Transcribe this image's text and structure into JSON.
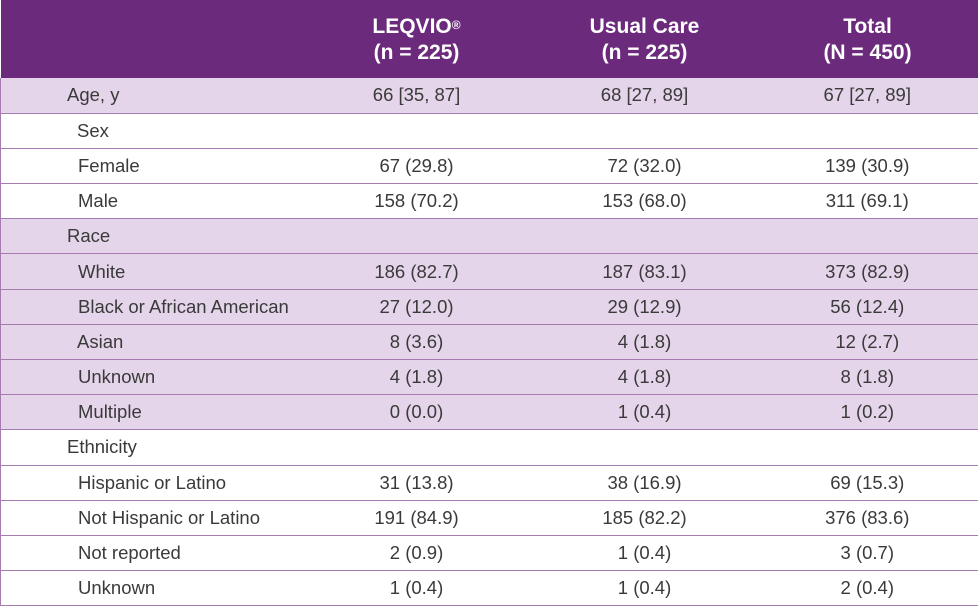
{
  "header": {
    "col1_title": "LEQVIO",
    "col1_mark": "®",
    "col1_n": "(n = 225)",
    "col2_title": "Usual Care",
    "col2_n": "(n = 225)",
    "col3_title": "Total",
    "col3_n": "(N = 450)"
  },
  "rows": [
    {
      "label": "Age, y",
      "v1": "66 [35, 87]",
      "v2": "68 [27, 89]",
      "v3": "67 [27, 89]"
    },
    {
      "label": "Sex",
      "v1": "",
      "v2": "",
      "v3": ""
    },
    {
      "label": "Female",
      "v1": "67 (29.8)",
      "v2": "72 (32.0)",
      "v3": "139 (30.9)"
    },
    {
      "label": "Male",
      "v1": "158 (70.2)",
      "v2": "153 (68.0)",
      "v3": "311 (69.1)"
    },
    {
      "label": "Race",
      "v1": "",
      "v2": "",
      "v3": ""
    },
    {
      "label": "White",
      "v1": "186 (82.7)",
      "v2": "187 (83.1)",
      "v3": "373 (82.9)"
    },
    {
      "label": "Black or African American",
      "v1": "27 (12.0)",
      "v2": "29 (12.9)",
      "v3": "56 (12.4)"
    },
    {
      "label": "Asian",
      "v1": "8 (3.6)",
      "v2": "4 (1.8)",
      "v3": "12 (2.7)"
    },
    {
      "label": "Unknown",
      "v1": "4 (1.8)",
      "v2": "4 (1.8)",
      "v3": "8 (1.8)"
    },
    {
      "label": "Multiple",
      "v1": "0 (0.0)",
      "v2": "1 (0.4)",
      "v3": "1 (0.2)"
    },
    {
      "label": "Ethnicity",
      "v1": "",
      "v2": "",
      "v3": ""
    },
    {
      "label": "Hispanic or Latino",
      "v1": "31 (13.8)",
      "v2": "38 (16.9)",
      "v3": "69 (15.3)"
    },
    {
      "label": "Not Hispanic or Latino",
      "v1": "191 (84.9)",
      "v2": "185 (82.2)",
      "v3": "376 (83.6)"
    },
    {
      "label": "Not reported",
      "v1": "2 (0.9)",
      "v2": "1 (0.4)",
      "v3": "3 (0.7)"
    },
    {
      "label": "Unknown",
      "v1": "1 (0.4)",
      "v2": "1 (0.4)",
      "v3": "2 (0.4)"
    }
  ]
}
